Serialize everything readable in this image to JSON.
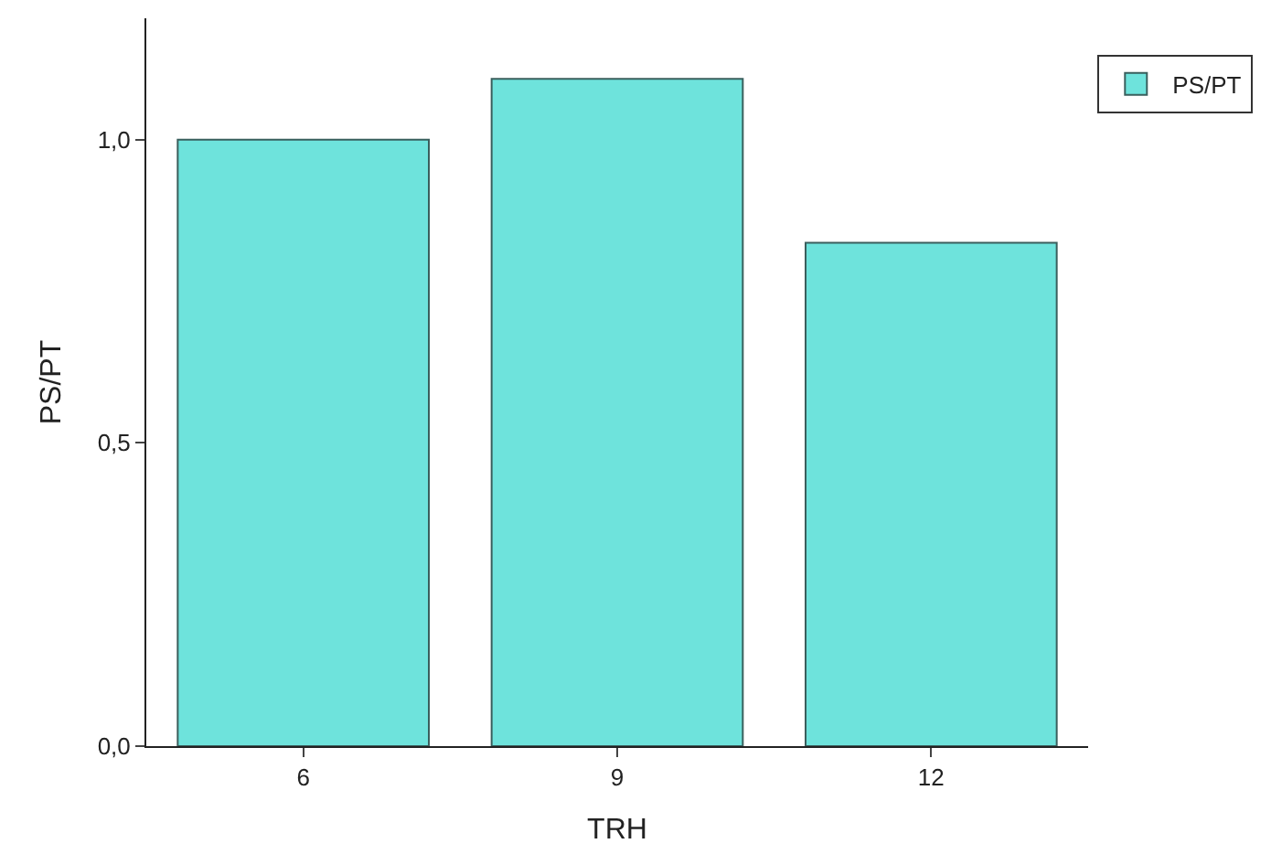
{
  "chart_data": {
    "type": "bar",
    "xlabel": "TRH",
    "ylabel": "PS/PT",
    "categories": [
      "6",
      "9",
      "12"
    ],
    "series": [
      {
        "name": "PS/PT",
        "color": "#6ee3dc",
        "values": [
          1.0,
          1.1,
          0.83
        ]
      }
    ],
    "ylim": [
      0,
      1.2
    ],
    "yticks": [
      {
        "value": 0,
        "label": "0,0"
      },
      {
        "value": 0.5,
        "label": "0,5"
      },
      {
        "value": 1.0,
        "label": "1,0"
      }
    ],
    "legend": "top right"
  }
}
